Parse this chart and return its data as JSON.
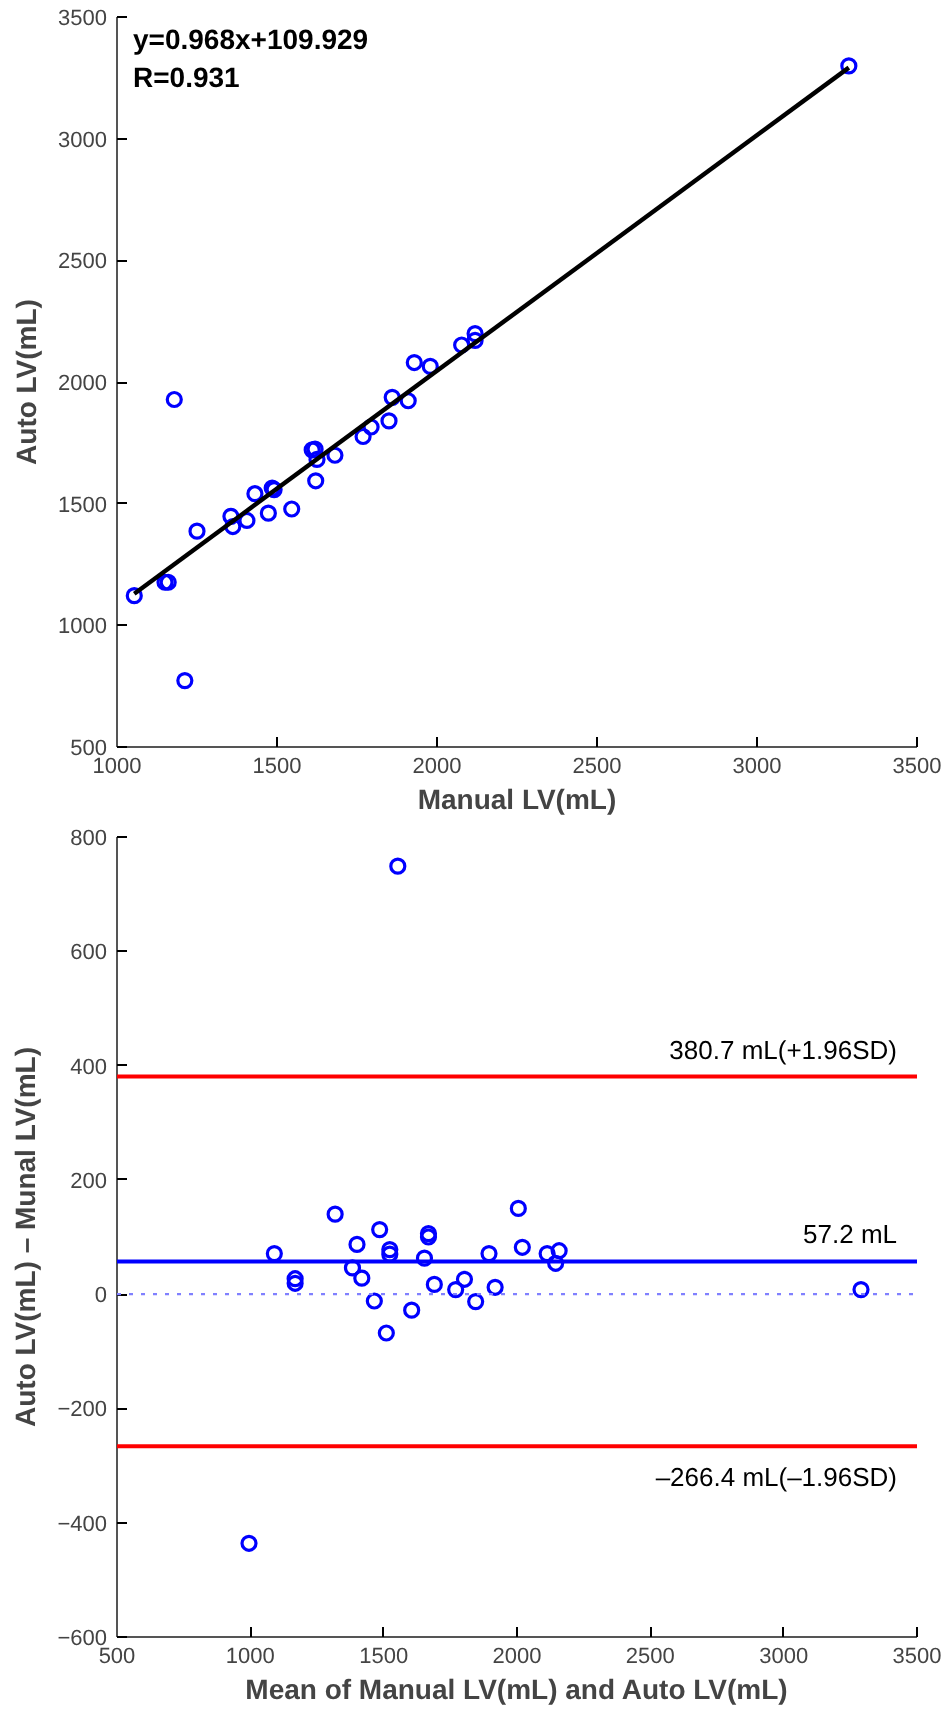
{
  "chart_data": [
    {
      "type": "scatter",
      "xlabel": "Manual LV(mL)",
      "ylabel": "Auto LV(mL)",
      "xlim": [
        1000,
        3500
      ],
      "ylim": [
        500,
        3500
      ],
      "xticks": [
        1000,
        1500,
        2000,
        2500,
        3000,
        3500
      ],
      "yticks": [
        500,
        1000,
        1500,
        2000,
        2500,
        3000,
        3500
      ],
      "grid": false,
      "marker": "circle",
      "annotations": [
        "y=0.968x+109.929",
        "R=0.931"
      ],
      "series": [
        {
          "color": "#0000ff",
          "x": [
            1054,
            1150,
            1160,
            1179,
            1212,
            1250,
            1356,
            1362,
            1406,
            1431,
            1473,
            1485,
            1491,
            1546,
            1610,
            1619,
            1625,
            1621,
            1681,
            1769,
            1794,
            1850,
            1860,
            1910,
            1929,
            1979,
            2077,
            2119,
            2119,
            3287
          ],
          "values": [
            1122,
            1177,
            1177,
            1928,
            773,
            1387,
            1448,
            1406,
            1431,
            1541,
            1461,
            1564,
            1558,
            1478,
            1721,
            1724,
            1682,
            1594,
            1699,
            1776,
            1815,
            1840,
            1937,
            1923,
            2080,
            2064,
            2152,
            2199,
            2171,
            3299
          ]
        },
        {
          "type": "line",
          "marker": "none",
          "color": "#000000",
          "x": [
            1054,
            3287
          ],
          "values": [
            1130,
            3292
          ]
        }
      ]
    },
    {
      "type": "scatter",
      "xlabel": "Mean of Manual LV(mL) and Auto LV(mL)",
      "ylabel": "Auto LV(mL) – Munal LV(mL)",
      "xlim": [
        500,
        3500
      ],
      "ylim": [
        -600,
        800
      ],
      "xticks": [
        500,
        1000,
        1500,
        2000,
        2500,
        3000,
        3500
      ],
      "yticks": [
        -600,
        -400,
        -200,
        0,
        200,
        400,
        600,
        800
      ],
      "grid": false,
      "marker": "circle",
      "ref_lines": [
        {
          "axis": "y",
          "value": 380.7,
          "label": "380.7 mL(+1.96SD)",
          "color": "#ff0000"
        },
        {
          "axis": "y",
          "value": 57.2,
          "label": "57.2 mL",
          "color": "#0000ff"
        },
        {
          "axis": "y",
          "value": 0,
          "label": null,
          "color": "#8080ff",
          "line_style": "dotted"
        },
        {
          "axis": "y",
          "value": -266.4,
          "label": "–266.4 mL(–1.96SD)",
          "color": "#ff0000"
        }
      ],
      "series": [
        {
          "color": "#0000ff",
          "x": [
            1090,
            1168,
            1168,
            995,
            1383,
            1418,
            1400,
            1465,
            1510,
            1523,
            1523,
            1605,
            1653,
            1668,
            1668,
            1690,
            1770,
            1803,
            1845,
            1895,
            1918,
            2020,
            2113,
            2145,
            2158,
            3290,
            1318,
            1485,
            2005,
            1553
          ],
          "values": [
            71,
            27,
            19,
            -436,
            46,
            28,
            87,
            -12,
            -68,
            78,
            70,
            -28,
            63,
            106,
            100,
            17,
            8,
            26,
            -13,
            71,
            12,
            82,
            71,
            54,
            76,
            8,
            140,
            113,
            150,
            749
          ]
        }
      ]
    }
  ]
}
